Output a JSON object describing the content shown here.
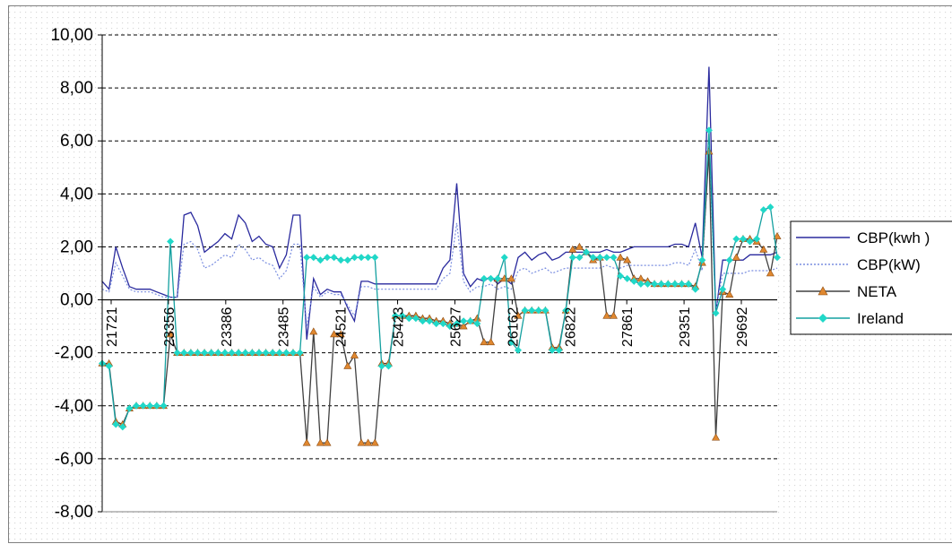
{
  "chart_data": {
    "type": "line",
    "ylim": [
      -8,
      10
    ],
    "y_ticks": [
      "10,00",
      "8,00",
      "6,00",
      "4,00",
      "2,00",
      "0,00",
      "-2,00",
      "-4,00",
      "-6,00",
      "-8,00"
    ],
    "y_tick_values": [
      10,
      8,
      6,
      4,
      2,
      0,
      -2,
      -4,
      -6,
      -8
    ],
    "x_tick_labels": [
      "21721",
      "23356",
      "23386",
      "23485",
      "24521",
      "25423",
      "25627",
      "26162",
      "26822",
      "27861",
      "29351",
      "29692"
    ],
    "grid": "horizontal dashed lines at each y tick",
    "legend_position": "right",
    "n_points": 100,
    "series": [
      {
        "name": "CBP(kwh )",
        "color": "#2a2a9e",
        "style": "solid",
        "marker": "none",
        "values": [
          0.7,
          0.4,
          2.0,
          1.2,
          0.5,
          0.4,
          0.4,
          0.4,
          0.3,
          0.2,
          0.1,
          0.1,
          3.2,
          3.3,
          2.8,
          1.8,
          2.0,
          2.2,
          2.5,
          2.3,
          3.2,
          2.9,
          2.2,
          2.4,
          2.1,
          2.0,
          1.2,
          1.7,
          3.2,
          3.2,
          -1.5,
          0.8,
          0.2,
          0.4,
          0.3,
          0.3,
          -0.3,
          -0.8,
          0.7,
          0.7,
          0.6,
          0.6,
          0.6,
          0.6,
          0.6,
          0.6,
          0.6,
          0.6,
          0.6,
          0.6,
          1.2,
          1.5,
          4.4,
          1.0,
          0.5,
          0.8,
          0.7,
          0.9,
          0.6,
          0.8,
          0.6,
          1.6,
          1.8,
          1.5,
          1.7,
          1.8,
          1.5,
          1.6,
          1.8,
          1.8,
          1.8,
          1.8,
          1.8,
          1.8,
          1.9,
          1.8,
          1.8,
          1.9,
          2.0,
          2.0,
          2.0,
          2.0,
          2.0,
          2.0,
          2.1,
          2.1,
          2.0,
          2.9,
          1.6,
          8.8,
          -0.5,
          1.5,
          1.5,
          1.5,
          1.5,
          1.7,
          1.7,
          1.7,
          1.7,
          1.8
        ]
      },
      {
        "name": "CBP(kW)",
        "color": "#7a8ee0",
        "style": "dotted",
        "marker": "none",
        "values": [
          0.4,
          0.3,
          1.4,
          0.9,
          0.4,
          0.3,
          0.3,
          0.3,
          0.2,
          0.1,
          0.1,
          0.1,
          2.1,
          2.2,
          1.9,
          1.2,
          1.3,
          1.5,
          1.7,
          1.6,
          2.1,
          1.9,
          1.5,
          1.6,
          1.4,
          1.3,
          0.8,
          1.1,
          2.1,
          2.1,
          -1.0,
          0.5,
          0.1,
          0.3,
          0.2,
          0.2,
          -0.2,
          -0.6,
          0.5,
          0.5,
          0.4,
          0.4,
          0.4,
          0.4,
          0.4,
          0.4,
          0.4,
          0.4,
          0.4,
          0.4,
          0.8,
          1.0,
          2.9,
          0.7,
          0.3,
          0.5,
          0.5,
          0.6,
          0.4,
          0.5,
          0.4,
          1.1,
          1.2,
          1.0,
          1.1,
          1.2,
          1.0,
          1.1,
          1.2,
          1.2,
          1.2,
          1.2,
          1.2,
          1.2,
          1.3,
          1.2,
          1.2,
          1.3,
          1.3,
          1.3,
          1.3,
          1.3,
          1.3,
          1.3,
          1.4,
          1.4,
          1.3,
          1.9,
          1.1,
          5.8,
          -0.4,
          1.0,
          1.0,
          1.0,
          1.0,
          1.1,
          1.1,
          1.1,
          1.1,
          1.2
        ]
      },
      {
        "name": "NETA",
        "color": "#404040",
        "style": "solid",
        "marker": "triangle",
        "marker_color": "#e08830",
        "values": [
          -2.4,
          -2.4,
          -4.6,
          -4.7,
          -4.1,
          -4.0,
          -4.0,
          -4.0,
          -4.0,
          -4.0,
          -1.3,
          -2.0,
          -2.0,
          -2.0,
          -2.0,
          -2.0,
          -2.0,
          -2.0,
          -2.0,
          -2.0,
          -2.0,
          -2.0,
          -2.0,
          -2.0,
          -2.0,
          -2.0,
          -2.0,
          -2.0,
          -2.0,
          -2.0,
          -5.4,
          -1.2,
          -5.4,
          -5.4,
          -1.3,
          -1.3,
          -2.5,
          -2.1,
          -5.4,
          -5.4,
          -5.4,
          -2.4,
          -2.4,
          -0.6,
          -0.6,
          -0.6,
          -0.6,
          -0.7,
          -0.7,
          -0.8,
          -0.8,
          -0.9,
          -0.9,
          -1.0,
          -0.8,
          -0.7,
          -1.6,
          -1.6,
          0.8,
          0.8,
          0.8,
          -0.6,
          -0.4,
          -0.4,
          -0.4,
          -0.4,
          -1.8,
          -1.8,
          -0.4,
          1.9,
          2.0,
          1.8,
          1.5,
          1.6,
          -0.6,
          -0.6,
          1.6,
          1.5,
          0.8,
          0.8,
          0.7,
          0.6,
          0.6,
          0.6,
          0.6,
          0.6,
          0.6,
          0.5,
          1.4,
          5.6,
          -5.2,
          0.3,
          0.2,
          1.6,
          2.3,
          2.3,
          2.2,
          1.9,
          1.0,
          2.4
        ]
      },
      {
        "name": "Ireland",
        "color": "#14a0a0",
        "style": "solid",
        "marker": "diamond",
        "marker_color": "#20d8c8",
        "values": [
          -2.4,
          -2.5,
          -4.7,
          -4.8,
          -4.1,
          -4.0,
          -4.0,
          -4.0,
          -4.0,
          -4.0,
          2.2,
          -2.0,
          -2.0,
          -2.0,
          -2.0,
          -2.0,
          -2.0,
          -2.0,
          -2.0,
          -2.0,
          -2.0,
          -2.0,
          -2.0,
          -2.0,
          -2.0,
          -2.0,
          -2.0,
          -2.0,
          -2.0,
          -2.0,
          1.6,
          1.6,
          1.5,
          1.6,
          1.6,
          1.5,
          1.5,
          1.6,
          1.6,
          1.6,
          1.6,
          -2.5,
          -2.5,
          -0.6,
          -0.6,
          -0.7,
          -0.7,
          -0.8,
          -0.8,
          -0.9,
          -0.9,
          -1.0,
          -0.9,
          -0.8,
          -0.8,
          -0.9,
          0.8,
          0.8,
          0.8,
          1.6,
          -1.6,
          -1.9,
          -0.4,
          -0.4,
          -0.4,
          -0.4,
          -1.9,
          -1.9,
          -0.4,
          1.6,
          1.6,
          1.8,
          1.6,
          1.6,
          1.6,
          1.6,
          0.9,
          0.8,
          0.7,
          0.6,
          0.6,
          0.6,
          0.6,
          0.6,
          0.6,
          0.6,
          0.6,
          0.4,
          1.5,
          6.4,
          -0.5,
          0.4,
          1.5,
          2.3,
          2.3,
          2.2,
          2.3,
          3.4,
          3.5,
          1.6
        ]
      }
    ]
  }
}
